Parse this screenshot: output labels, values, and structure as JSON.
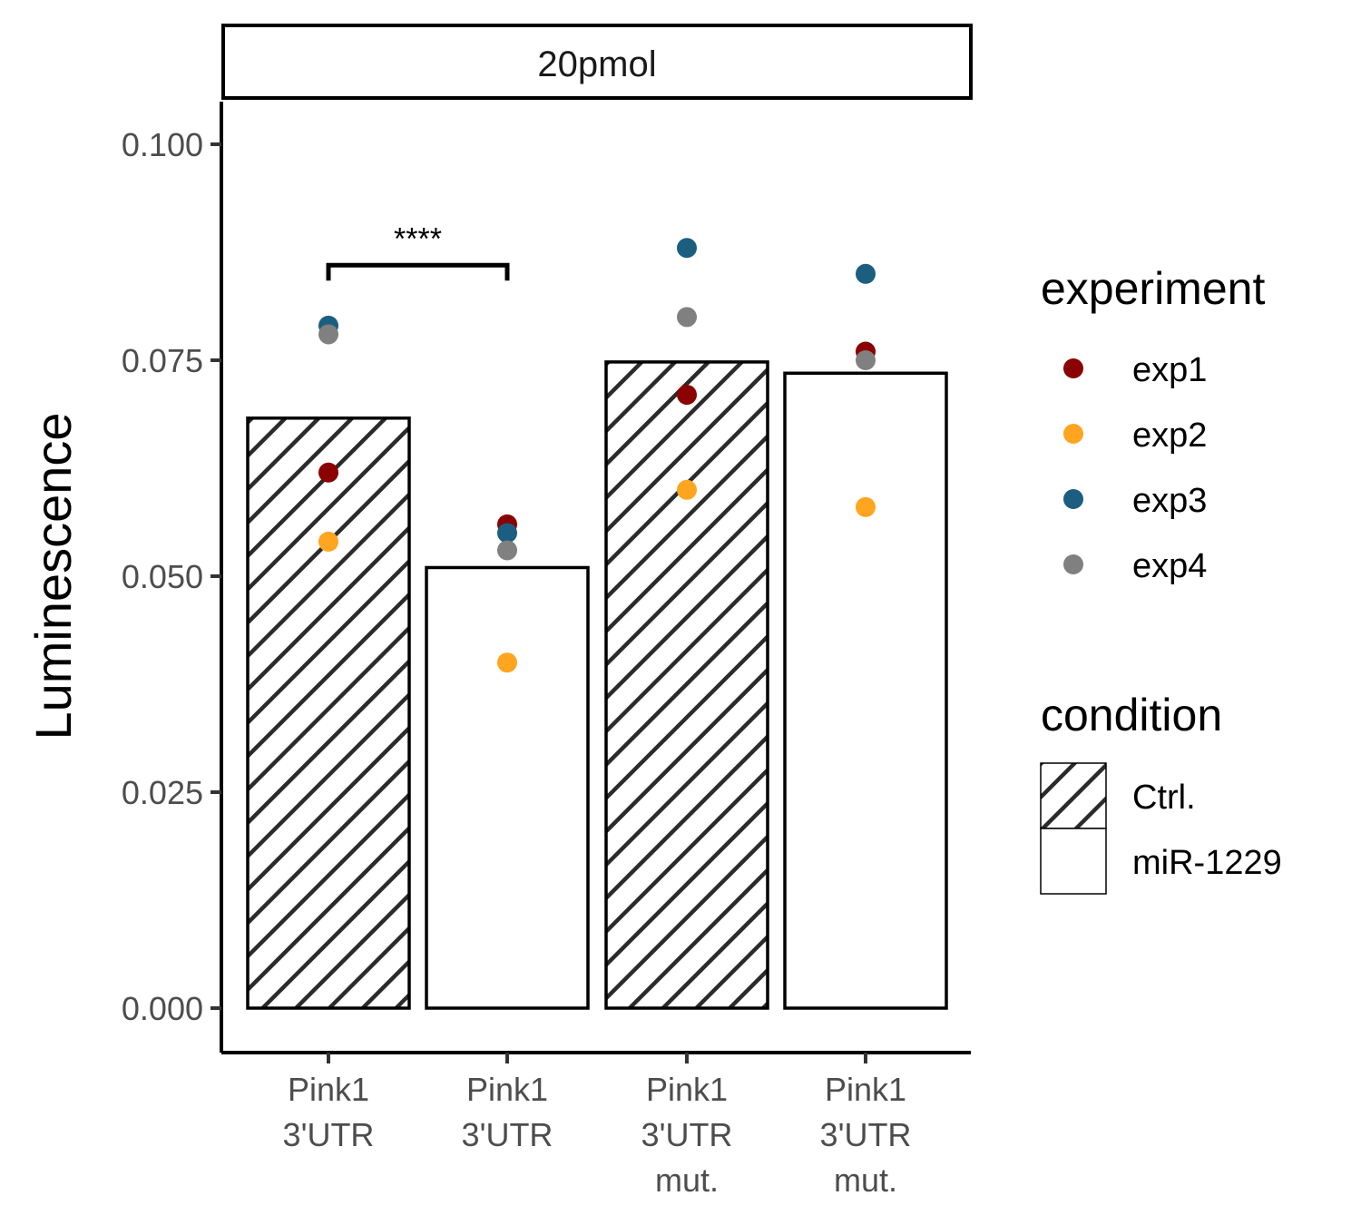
{
  "chart_data": {
    "type": "bar",
    "facet_label": "20pmol",
    "ylabel": "Luminescence",
    "xlabel": "",
    "ylim": [
      -0.0015,
      0.1045
    ],
    "yticks": [
      0.0,
      0.025,
      0.05,
      0.075,
      0.1
    ],
    "ytick_labels": [
      "0.000",
      "0.025",
      "0.050",
      "0.075",
      "0.100"
    ],
    "categories": [
      {
        "lines": [
          "Pink1",
          "3'UTR"
        ],
        "condition": "Ctrl.",
        "value": 0.0683
      },
      {
        "lines": [
          "Pink1",
          "3'UTR"
        ],
        "condition": "miR-1229",
        "value": 0.051
      },
      {
        "lines": [
          "Pink1",
          "3'UTR",
          "mut."
        ],
        "condition": "Ctrl.",
        "value": 0.0748
      },
      {
        "lines": [
          "Pink1",
          "3'UTR",
          "mut."
        ],
        "condition": "miR-1229",
        "value": 0.0735
      }
    ],
    "points": [
      {
        "cat": 0,
        "exp": "exp3",
        "y": 0.079
      },
      {
        "cat": 0,
        "exp": "exp4",
        "y": 0.078
      },
      {
        "cat": 0,
        "exp": "exp1",
        "y": 0.062
      },
      {
        "cat": 0,
        "exp": "exp2",
        "y": 0.054
      },
      {
        "cat": 1,
        "exp": "exp1",
        "y": 0.056
      },
      {
        "cat": 1,
        "exp": "exp3",
        "y": 0.055
      },
      {
        "cat": 1,
        "exp": "exp4",
        "y": 0.053
      },
      {
        "cat": 1,
        "exp": "exp2",
        "y": 0.04
      },
      {
        "cat": 2,
        "exp": "exp3",
        "y": 0.088
      },
      {
        "cat": 2,
        "exp": "exp4",
        "y": 0.08
      },
      {
        "cat": 2,
        "exp": "exp1",
        "y": 0.071
      },
      {
        "cat": 2,
        "exp": "exp2",
        "y": 0.06
      },
      {
        "cat": 3,
        "exp": "exp3",
        "y": 0.085
      },
      {
        "cat": 3,
        "exp": "exp1",
        "y": 0.076
      },
      {
        "cat": 3,
        "exp": "exp4",
        "y": 0.075
      },
      {
        "cat": 3,
        "exp": "exp2",
        "y": 0.058
      }
    ],
    "significance": {
      "from": 0,
      "to": 1,
      "y": 0.086,
      "label": "****"
    },
    "legend": {
      "experiment": {
        "title": "experiment",
        "items": [
          {
            "name": "exp1",
            "color": "#8b0000"
          },
          {
            "name": "exp2",
            "color": "#ffa520"
          },
          {
            "name": "exp3",
            "color": "#1b5e80"
          },
          {
            "name": "exp4",
            "color": "#808080"
          }
        ]
      },
      "condition": {
        "title": "condition",
        "items": [
          {
            "name": "Ctrl.",
            "fill": "hatch"
          },
          {
            "name": "miR-1229",
            "fill": "#ffffff"
          }
        ]
      },
      "placement": "right"
    },
    "grid": false
  }
}
